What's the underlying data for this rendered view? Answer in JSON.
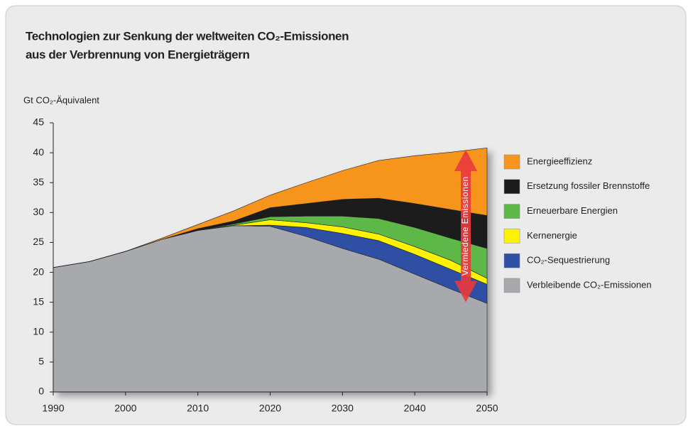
{
  "chart_data": {
    "type": "stacked_area",
    "title": [
      "Technologien zur Senkung der weltweiten CO₂-Emissionen",
      "aus der Verbrennung von Energieträgern"
    ],
    "y_label": "Gt CO₂-Äquivalent",
    "annotation": "Vermiedene Emissionen",
    "x": [
      1990,
      1995,
      2000,
      2005,
      2010,
      2015,
      2020,
      2025,
      2030,
      2035,
      2040,
      2045,
      2050
    ],
    "series": [
      {
        "name": "Energieeffizienz",
        "color": "#f7941d",
        "values": [
          0,
          0,
          0,
          0.2,
          0.7,
          1.7,
          2.1,
          3.5,
          4.8,
          6.3,
          8,
          9.6,
          11.3
        ]
      },
      {
        "name": "Ersetzung fossiler Brennstoffe",
        "color": "#1a1a1a",
        "values": [
          0,
          0,
          0,
          0,
          0.3,
          0.5,
          1.5,
          2.1,
          2.8,
          3.4,
          4,
          4.8,
          5.5
        ]
      },
      {
        "name": "Erneuerbare Energien",
        "color": "#5db847",
        "values": [
          0,
          0,
          0,
          0,
          0,
          0.2,
          0.5,
          1.1,
          1.8,
          2.6,
          3.2,
          3.7,
          5
        ]
      },
      {
        "name": "Kernenergie",
        "color": "#fff200",
        "values": [
          0,
          0,
          0,
          0,
          0,
          0.1,
          0.9,
          0.8,
          1.1,
          1.1,
          1.3,
          1.5,
          1
        ]
      },
      {
        "name": "CO₂-Sequestrierung",
        "color": "#2e4fa3",
        "values": [
          0,
          0,
          0,
          0,
          0,
          0,
          0.2,
          1.5,
          2.5,
          3.1,
          3.3,
          3.3,
          3.2
        ]
      },
      {
        "name": "Verbleibende CO₂-Emissionen",
        "color": "#a7a9ac",
        "values": [
          20.8,
          21.8,
          23.5,
          25.5,
          27,
          27.8,
          27.7,
          26,
          24,
          22.2,
          19.7,
          17.2,
          14.8
        ]
      }
    ],
    "xlim": [
      1990,
      2050
    ],
    "xticks": [
      1990,
      2000,
      2010,
      2020,
      2030,
      2040,
      2050
    ],
    "ylim": [
      0,
      45
    ],
    "yticks": [
      0,
      5,
      10,
      15,
      20,
      25,
      30,
      35,
      40,
      45
    ]
  }
}
